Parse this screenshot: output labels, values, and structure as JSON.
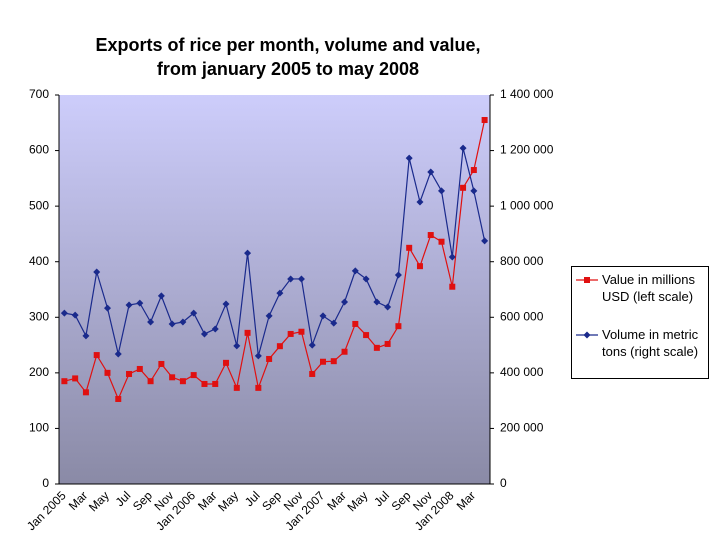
{
  "chart_data": {
    "type": "line",
    "title": "Exports of rice per month, volume and value,\nfrom january 2005 to may 2008",
    "categories": [
      "Jan 2005",
      null,
      "Mar",
      null,
      "May",
      null,
      "Jul",
      null,
      "Sep",
      null,
      "Nov",
      null,
      "Jan 2006",
      null,
      "Mar",
      null,
      "May",
      null,
      "Jul",
      null,
      "Sep",
      null,
      "Nov",
      null,
      "Jan 2007",
      null,
      "Mar",
      null,
      "May",
      null,
      "Jul",
      null,
      "Sep",
      null,
      "Nov",
      null,
      "Jan 2008",
      null,
      "Mar",
      null
    ],
    "series": [
      {
        "name": "Value in millions USD (left scale)",
        "color": "#e01010",
        "marker": "square",
        "values": [
          185,
          190,
          165,
          232,
          200,
          153,
          198,
          207,
          185,
          216,
          192,
          185,
          196,
          180,
          180,
          218,
          173,
          272,
          173,
          225,
          248,
          270,
          274,
          198,
          220,
          221,
          238,
          288,
          268,
          245,
          252,
          284,
          425,
          392,
          448,
          436,
          355,
          533,
          565,
          655
        ]
      },
      {
        "name": "Volume in metric tons (right scale)",
        "color": "#1a2a8c",
        "marker": "diamond",
        "axis": "y2",
        "values": [
          615000,
          608000,
          533000,
          763000,
          633000,
          468000,
          644000,
          651000,
          583000,
          677000,
          576000,
          583000,
          615000,
          540000,
          558000,
          648000,
          497000,
          831000,
          461000,
          605000,
          687000,
          738000,
          738000,
          500000,
          605000,
          579000,
          655000,
          767000,
          738000,
          655000,
          637000,
          752000,
          1173000,
          1015000,
          1123000,
          1055000,
          817000,
          1209000,
          1055000,
          875000
        ]
      }
    ],
    "ylim": [
      0,
      700
    ],
    "yticks": [
      0,
      100,
      200,
      300,
      400,
      500,
      600,
      700
    ],
    "y2lim": [
      0,
      1400000
    ],
    "y2ticks": [
      {
        "value": 0,
        "label": "0"
      },
      {
        "value": 200000,
        "label": "200 000"
      },
      {
        "value": 400000,
        "label": "400 000"
      },
      {
        "value": 600000,
        "label": "600 000"
      },
      {
        "value": 800000,
        "label": "800 000"
      },
      {
        "value": 1000000,
        "label": "1 000 000"
      },
      {
        "value": 1200000,
        "label": "1 200 000"
      },
      {
        "value": 1400000,
        "label": "1 400 000"
      }
    ],
    "grid": false,
    "legend": "right"
  }
}
